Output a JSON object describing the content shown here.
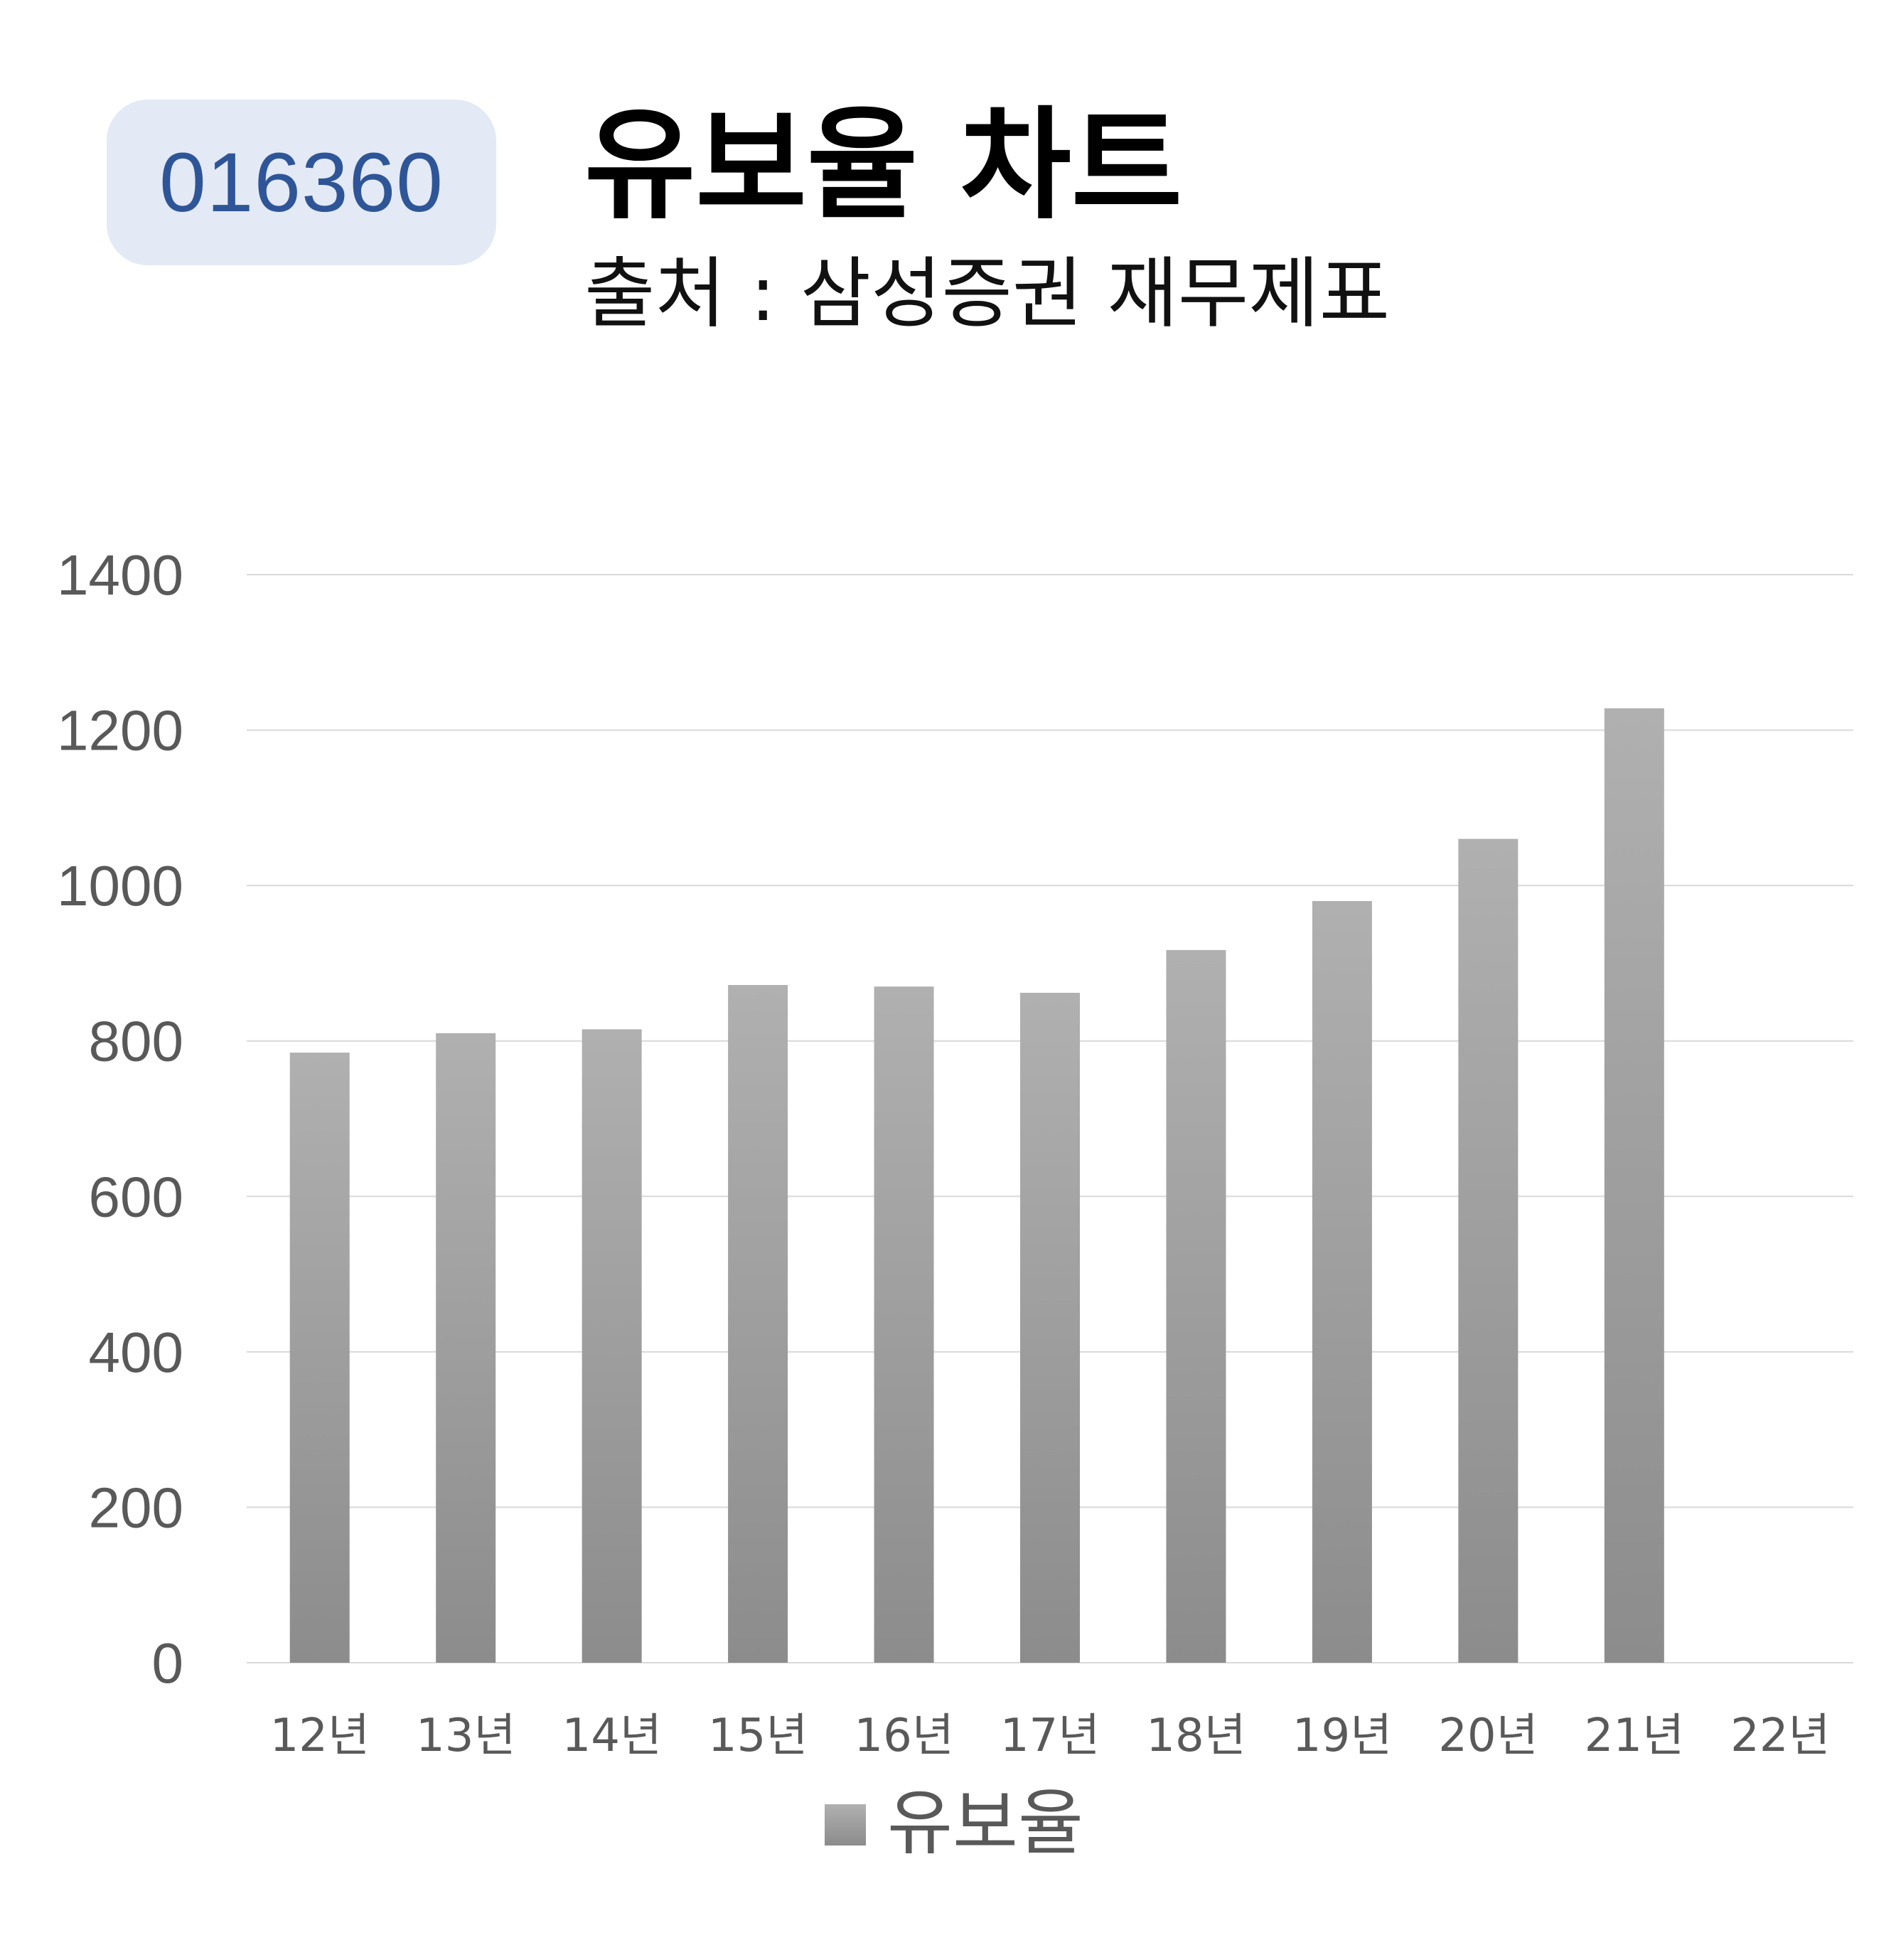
{
  "badge": {
    "code": "016360"
  },
  "header": {
    "title": "유보율 차트",
    "subtitle": "출처 : 삼성증권 재무제표"
  },
  "colors": {
    "badge_bg": "#e3e9f5",
    "badge_text": "#2e5597",
    "bar_top": "#b0b0b0",
    "bar_bottom": "#8c8c8c",
    "grid": "#d9d9d9",
    "axis_text": "#595959"
  },
  "chart_data": {
    "type": "bar",
    "categories": [
      "12년",
      "13년",
      "14년",
      "15년",
      "16년",
      "17년",
      "18년",
      "19년",
      "20년",
      "21년",
      "22년"
    ],
    "series": [
      {
        "name": "유보율",
        "values": [
          785,
          810,
          815,
          872,
          870,
          862,
          917,
          980,
          1060,
          1228,
          null
        ]
      }
    ],
    "ylim": [
      0,
      1400
    ],
    "yticks": [
      0,
      200,
      400,
      600,
      800,
      1000,
      1200,
      1400
    ],
    "grid": true,
    "legend_position": "bottom"
  }
}
